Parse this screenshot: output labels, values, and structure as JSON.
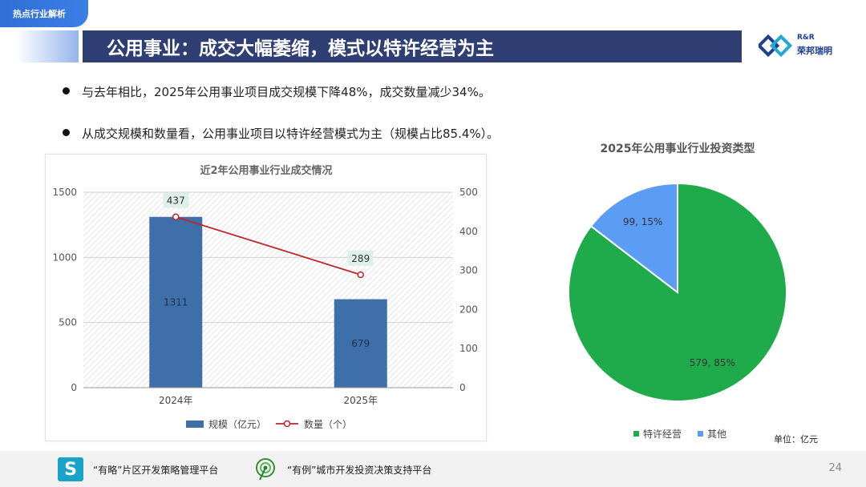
{
  "header": {
    "corner_tag": "热点行业解析",
    "title": "公用事业：成交大幅萎缩，模式以特许经营为主",
    "logo_line1": "R&R",
    "logo_line2": "荣邦瑞明"
  },
  "bullets": [
    "与去年相比，2025年公用事业项目成交规模下降48%，成交数量减少34%。",
    "从成交规模和数量看，公用事业项目以特许经营模式为主（规模占比85.4%）。"
  ],
  "chart_data": [
    {
      "type": "bar",
      "title": "近2年公用事业行业成交情况",
      "categories": [
        "2024年",
        "2025年"
      ],
      "series": [
        {
          "name": "规模（亿元）",
          "type": "bar",
          "axis": "left",
          "values": [
            1311,
            679
          ],
          "color": "#3f6fa8"
        },
        {
          "name": "数量（个）",
          "type": "line",
          "axis": "right",
          "values": [
            437,
            289
          ],
          "color": "#c0242a"
        }
      ],
      "ylim_left": [
        0,
        1500
      ],
      "yticks_left": [
        0,
        500,
        1000,
        1500
      ],
      "ylim_right": [
        0,
        500
      ],
      "yticks_right": [
        0,
        100,
        200,
        300,
        400,
        500
      ],
      "legend_position": "bottom",
      "grid": true
    },
    {
      "type": "pie",
      "title": "2025年公用事业行业投资类型",
      "slices": [
        {
          "name": "特许经营",
          "value": 579,
          "percent": 85,
          "label": "579, 85%",
          "color": "#1faa4c"
        },
        {
          "name": "其他",
          "value": 99,
          "percent": 15,
          "label": "99, 15%",
          "color": "#5b9cf4"
        }
      ],
      "legend_position": "bottom",
      "unit_note": "单位：亿元"
    }
  ],
  "footer": {
    "item1": "“有略”片区开发策略管理平台",
    "item2": "“有例”城市开发投资决策支持平台",
    "page_number": "24"
  }
}
